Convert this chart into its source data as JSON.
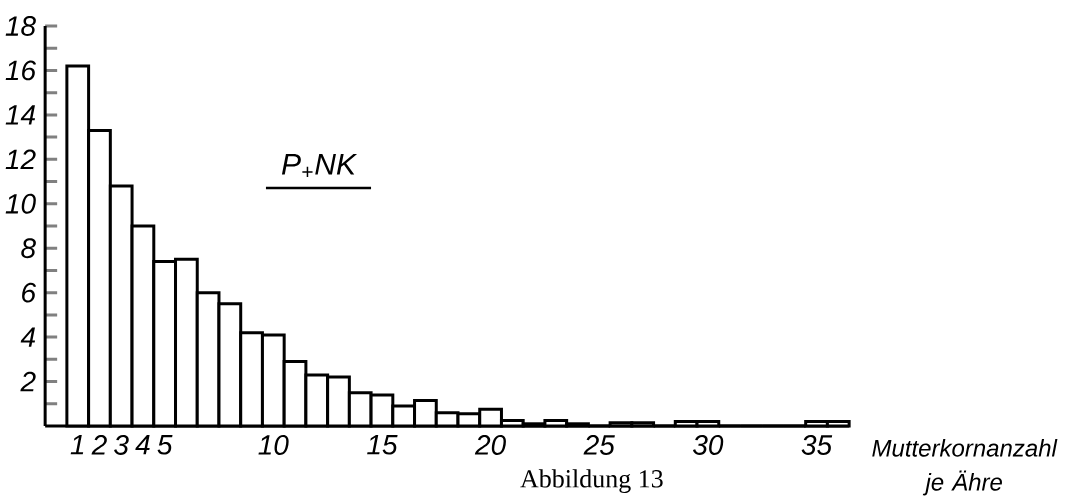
{
  "chart_data": {
    "type": "histogram",
    "bins": [
      0.5,
      1.5,
      2.5,
      3.5,
      4.5,
      5.5,
      6.5,
      7.5,
      8.5,
      9.5,
      10.5,
      11.5,
      12.5,
      13.5,
      14.5,
      15.5,
      16.5,
      17.5,
      18.5,
      19.5,
      20.5,
      21.5,
      22.5,
      23.5,
      24.5,
      25.5,
      26.5,
      27.5,
      28.5,
      29.5,
      30.5,
      31.5,
      32.5,
      33.5,
      34.5,
      35.5,
      36.5
    ],
    "values": [
      16.2,
      13.3,
      10.8,
      9.0,
      7.4,
      7.5,
      6.0,
      5.5,
      4.2,
      4.1,
      2.9,
      2.3,
      2.2,
      1.5,
      1.4,
      0.9,
      1.15,
      0.6,
      0.55,
      0.75,
      0.25,
      0.1,
      0.25,
      0.1,
      0,
      0.15,
      0.15,
      0,
      0.2,
      0.2,
      0,
      0,
      0,
      0,
      0.2,
      0.2
    ],
    "color": "#ffffff",
    "xlim": [
      -0.5,
      36.5
    ],
    "ylim": [
      0,
      18
    ],
    "xticks": [
      1,
      2,
      3,
      4,
      5,
      10,
      15,
      20,
      25,
      30,
      35
    ],
    "yticks": [
      {
        "value": 1,
        "label": null
      },
      2,
      {
        "value": 3,
        "label": null
      },
      4,
      {
        "value": 5,
        "label": null
      },
      6,
      {
        "value": 7,
        "label": null
      },
      8,
      {
        "value": 9,
        "label": null
      },
      10,
      {
        "value": 11,
        "label": null
      },
      12,
      {
        "value": 13,
        "label": null
      },
      14,
      {
        "value": 15,
        "label": null
      },
      16,
      {
        "value": 17,
        "label": null
      },
      18
    ],
    "xlabel": "Mutterkornanzahl je Ähre",
    "annotations": [
      "P$_{+}$NK",
      "Abbildung 13"
    ]
  }
}
